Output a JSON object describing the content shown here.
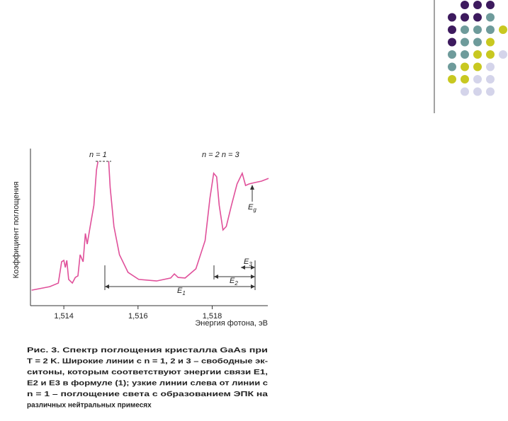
{
  "chart_data": {
    "type": "line",
    "y_label": "Коэффициент поглощения",
    "x_label": "Энергия фотона, эВ",
    "xlim": [
      1.5131,
      1.5195
    ],
    "ylim": [
      0,
      100
    ],
    "xticks": [
      {
        "value": 1.514,
        "label": "1,514"
      },
      {
        "value": 1.516,
        "label": "1,516"
      },
      {
        "value": 1.518,
        "label": "1,518"
      }
    ],
    "annotations": {
      "n1": "n = 1",
      "n23": "n = 2  n = 3",
      "eg": "E",
      "eg_sub": "g",
      "e1": "E",
      "e1_sub": "1",
      "e2": "E",
      "e2_sub": "2",
      "e3": "E",
      "e3_sub": "3"
    },
    "series": [
      {
        "color": "#e0509a",
        "x": [
          1.51313,
          1.51362,
          1.51385,
          1.51394,
          1.514,
          1.51404,
          1.51408,
          1.51413,
          1.51423,
          1.51431,
          1.51438,
          1.51444,
          1.51452,
          1.51458,
          1.51463,
          1.51471,
          1.51481,
          1.51488,
          1.51492,
          1.51507,
          1.51521,
          1.51525,
          1.51535,
          1.5155,
          1.51573,
          1.51602,
          1.5165,
          1.51688,
          1.51698,
          1.51708,
          1.51727,
          1.51756,
          1.51781,
          1.51794,
          1.51804,
          1.51812,
          1.51819,
          1.51829,
          1.51838,
          1.51852,
          1.51867,
          1.51881,
          1.5189,
          1.519,
          1.51915,
          1.51933,
          1.51952
        ],
        "values": [
          10.1,
          12.4,
          14.7,
          28.6,
          29.5,
          24.9,
          29.5,
          17.1,
          14.7,
          18.4,
          19.4,
          33.2,
          28.6,
          47,
          40.1,
          51.6,
          65.4,
          88.5,
          94,
          null,
          94,
          77,
          51.6,
          33.2,
          21.7,
          17.1,
          16.1,
          18,
          20.7,
          18.4,
          18,
          24,
          42.4,
          70,
          86.2,
          83.9,
          65.4,
          49.3,
          51.6,
          65.4,
          79.3,
          86.2,
          78.3,
          79.3,
          80.2,
          81.1,
          82.9
        ]
      }
    ]
  },
  "caption": {
    "lines": [
      "Рис. 3. Спектр поглощения кристалла GaAs при",
      "T = 2 K. Широкие линии с n = 1, 2 и 3 – свободные эк-",
      "ситоны, которым соответствуют энергии связи E1,",
      "E2 и E3 в формуле (1); узкие линии слева от линии с",
      "n = 1 – поглощение света с образованием ЭПК на",
      "различных нейтральных примесях"
    ]
  }
}
